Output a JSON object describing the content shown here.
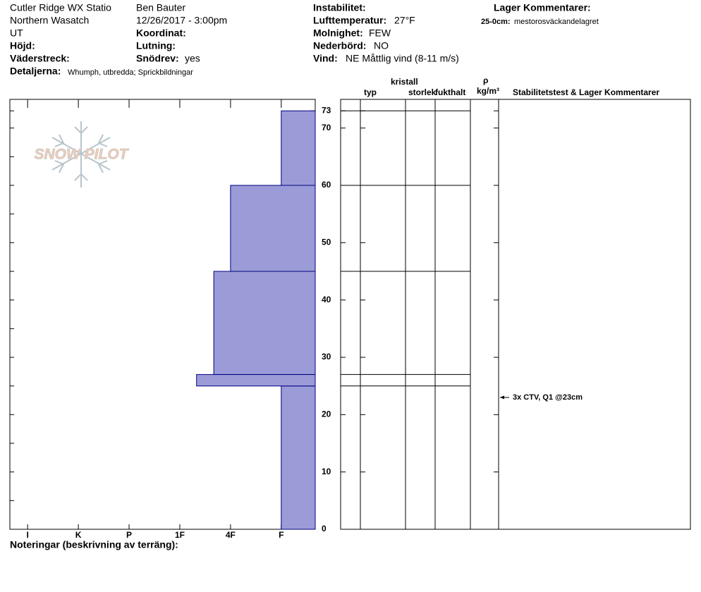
{
  "header": {
    "station": "Cutler Ridge WX Statio",
    "range": "Northern Wasatch",
    "state": "UT",
    "elevation_label": "Höjd:",
    "aspect_label": "Väderstreck:",
    "details_label": "Detaljerna:",
    "details": "Whumph, utbredda;  Sprickbildningar",
    "observer": "Ben Bauter",
    "datetime": "12/26/2017 - 3:00pm",
    "coord_label": "Koordinat:",
    "slope_label": "Lutning:",
    "wind_loading_label": "Snödrev:",
    "wind_loading": "yes",
    "instability_label": "Instabilitet:",
    "air_temp_label": "Lufttemperatur:",
    "air_temp": "27°F",
    "sky_label": "Molnighet:",
    "sky": "FEW",
    "precip_label": "Nederbörd:",
    "precip": "NO",
    "wind_label": "Vind:",
    "wind": "NE Måttlig vind (8-11 m/s)",
    "layer_comments_label": "Lager Kommentarer:",
    "layer_comment_range": "25-0cm:",
    "layer_comment": "mestorosväckandelagret"
  },
  "logo": "SNOW PILOT",
  "table_headers": {
    "type": "typ",
    "crystal": "kristall",
    "size": "storlek",
    "moisture": "fukthalt",
    "rho": "ρ",
    "density_unit": "kg/m³",
    "tests": "Stabilitetstest & Lager Kommentarer"
  },
  "notes_label": "Noteringar (beskrivning av terräng):",
  "chart_data": {
    "type": "profile",
    "color": "#9b9bd8",
    "edge_color": "#000080",
    "layers": [
      {
        "bottom": 0,
        "top": 25,
        "hardness": 1
      },
      {
        "bottom": 25,
        "top": 27,
        "hardness": 2.67
      },
      {
        "bottom": 27,
        "top": 45,
        "hardness": 2.33
      },
      {
        "bottom": 45,
        "top": 60,
        "hardness": 2
      },
      {
        "bottom": 60,
        "top": 73,
        "hardness": 1
      }
    ],
    "ylim": [
      0,
      75
    ],
    "yticks": [
      0,
      10,
      20,
      30,
      40,
      50,
      60,
      70,
      73
    ],
    "yminorticks": [
      5,
      15,
      25,
      35,
      45,
      55,
      65
    ],
    "xlim": [
      6.35,
      0.33
    ],
    "xticks": [
      {
        "value": 6,
        "label": "I"
      },
      {
        "value": 5,
        "label": "K"
      },
      {
        "value": 4,
        "label": "P"
      },
      {
        "value": 3,
        "label": "1F"
      },
      {
        "value": 2,
        "label": "4F"
      },
      {
        "value": 1,
        "label": "F"
      }
    ],
    "tests": [
      {
        "label": "3x CTV, Q1 @23cm",
        "depth": 23
      }
    ]
  }
}
